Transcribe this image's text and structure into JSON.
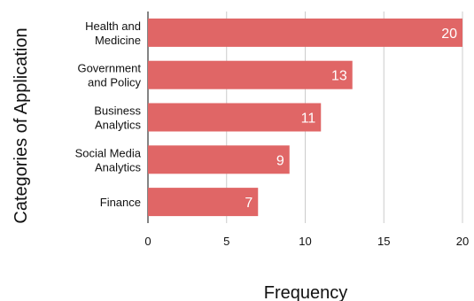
{
  "chart_data": {
    "type": "bar",
    "orientation": "horizontal",
    "categories": [
      [
        "Health and",
        "Medicine"
      ],
      [
        "Government",
        "and Policy"
      ],
      [
        "Business",
        "Analytics"
      ],
      [
        "Social Media",
        "Analytics"
      ],
      [
        "Finance"
      ]
    ],
    "values": [
      20,
      13,
      11,
      9,
      7
    ],
    "xlabel": "Frequency",
    "ylabel": "Categories of Application",
    "xlim": [
      0,
      20
    ],
    "xticks": [
      0,
      5,
      10,
      15,
      20
    ],
    "grid": "vertical",
    "legend": "none",
    "bar_color": "#e06666",
    "data_labels": true
  }
}
